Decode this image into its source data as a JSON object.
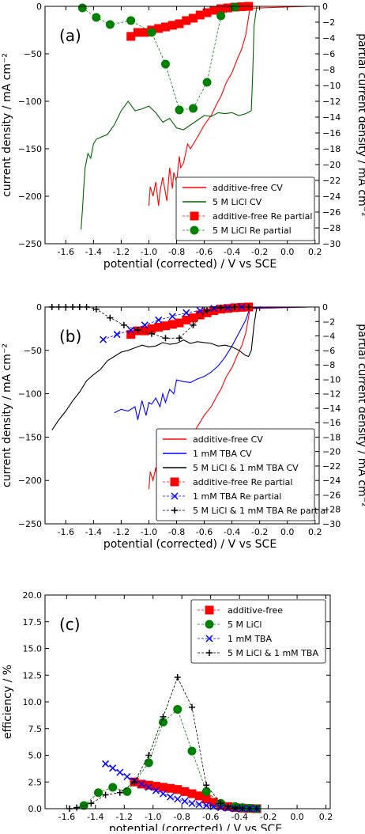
{
  "chart_data": [
    {
      "type": "line",
      "panel_label": "(a)",
      "xlabel": "potential (corrected) / V vs SCE",
      "ylabel": "current density / mA cm⁻²",
      "y2label": "partial current density / mA cm⁻²",
      "xlim": [
        -1.75,
        0.23
      ],
      "ylim": [
        -250,
        0
      ],
      "y2lim": [
        -30,
        0
      ],
      "xticks": [
        "-1.6",
        "-1.4",
        "-1.2",
        "-1.0",
        "-0.8",
        "-0.6",
        "-0.4",
        "-0.2",
        "0.0",
        "0.2"
      ],
      "yticks": [
        "0",
        "−50",
        "−100",
        "−150",
        "−200",
        "−250"
      ],
      "y2ticks": [
        "0",
        "−2",
        "−4",
        "−6",
        "−8",
        "−10",
        "−12",
        "−14",
        "−16",
        "−18",
        "−20",
        "−22",
        "−24",
        "−26",
        "−28",
        "−30"
      ],
      "legend_position": "lower-right",
      "series": [
        {
          "name": "additive-free CV",
          "axis": "left",
          "style": "line",
          "color": "#ff0000",
          "x": [
            0.15,
            -0.27,
            -0.3,
            -0.33,
            -0.36,
            -0.4,
            -0.44,
            -0.48,
            -0.5,
            -0.55,
            -0.6,
            -0.65,
            -0.7,
            -0.72,
            -0.75,
            -0.77,
            -0.78,
            -0.8,
            -0.82,
            -0.83,
            -0.85,
            -0.87,
            -0.9,
            -0.92,
            -0.93,
            -0.95,
            -0.97,
            -0.99,
            -1.0
          ],
          "y": [
            0,
            -2,
            -30,
            -45,
            -55,
            -70,
            -80,
            -95,
            -100,
            -115,
            -125,
            -138,
            -150,
            -145,
            -165,
            -170,
            -158,
            -185,
            -175,
            -192,
            -170,
            -205,
            -180,
            -195,
            -210,
            -185,
            -200,
            -190,
            -210
          ]
        },
        {
          "name": "5 M LiCl CV",
          "axis": "left",
          "style": "line",
          "color": "#006400",
          "x": [
            0.15,
            -0.22,
            -0.24,
            -0.25,
            -0.26,
            -0.3,
            -0.35,
            -0.4,
            -0.45,
            -0.5,
            -0.55,
            -0.6,
            -0.65,
            -0.7,
            -0.75,
            -0.8,
            -0.85,
            -0.9,
            -0.95,
            -1.0,
            -1.05,
            -1.1,
            -1.15,
            -1.2,
            -1.25,
            -1.3,
            -1.35,
            -1.38,
            -1.4,
            -1.42,
            -1.44,
            -1.46,
            -1.47,
            -1.48,
            -1.49
          ],
          "y": [
            0,
            0,
            -20,
            -70,
            -110,
            -113,
            -115,
            -112,
            -113,
            -112,
            -116,
            -115,
            -120,
            -125,
            -130,
            -128,
            -118,
            -122,
            -112,
            -105,
            -108,
            -110,
            -100,
            -110,
            -125,
            -135,
            -138,
            -140,
            -145,
            -160,
            -155,
            -170,
            -190,
            -215,
            -235
          ]
        },
        {
          "name": "additive-free Re partial",
          "axis": "right",
          "style": "marker",
          "marker": "square",
          "color": "#ff0000",
          "x": [
            -1.13,
            -1.08,
            -1.03,
            -0.98,
            -0.93,
            -0.88,
            -0.83,
            -0.78,
            -0.73,
            -0.68,
            -0.63,
            -0.58,
            -0.53,
            -0.48,
            -0.43,
            -0.38,
            -0.33,
            -0.28
          ],
          "y": [
            -3.8,
            -3.3,
            -3.3,
            -3.0,
            -2.8,
            -2.6,
            -2.4,
            -2.2,
            -1.8,
            -1.5,
            -1.1,
            -0.8,
            -0.5,
            -0.3,
            -0.2,
            -0.1,
            -0.05,
            0.0
          ]
        },
        {
          "name": "5 M LiCl Re partial",
          "axis": "right",
          "style": "marker",
          "marker": "circle",
          "color": "#008000",
          "x": [
            -1.48,
            -1.38,
            -1.28,
            -1.13,
            -0.98,
            -0.88,
            -0.78,
            -0.68,
            -0.58,
            -0.48,
            -0.38
          ],
          "y": [
            -0.2,
            -1.4,
            -2.3,
            -1.8,
            -3.3,
            -7.3,
            -13.1,
            -12.9,
            -9.6,
            -1.2,
            -0.1
          ]
        }
      ],
      "legend": [
        {
          "label": "additive-free CV",
          "color": "#ff0000",
          "kind": "line"
        },
        {
          "label": "5 M LiCl CV",
          "color": "#006400",
          "kind": "line"
        },
        {
          "label": "additive-free Re partial",
          "color": "#ff0000",
          "kind": "square"
        },
        {
          "label": "5 M LiCl Re partial",
          "color": "#008000",
          "kind": "circle"
        }
      ]
    },
    {
      "type": "line",
      "panel_label": "(b)",
      "xlabel": "potential (corrected) / V vs SCE",
      "ylabel": "current density / mA cm⁻²",
      "y2label": "partial current density / mA cm⁻²",
      "xlim": [
        -1.75,
        0.23
      ],
      "ylim": [
        -250,
        0
      ],
      "y2lim": [
        -30,
        0
      ],
      "xticks": [
        "-1.6",
        "-1.4",
        "-1.2",
        "-1.0",
        "-0.8",
        "-0.6",
        "-0.4",
        "-0.2",
        "0.0",
        "0.2"
      ],
      "yticks": [
        "0",
        "−50",
        "−100",
        "−150",
        "−200",
        "−250"
      ],
      "y2ticks": [
        "0",
        "−2",
        "−4",
        "−6",
        "−8",
        "−10",
        "−12",
        "−14",
        "−16",
        "−18",
        "−20",
        "−22",
        "−24",
        "−26",
        "−28",
        "−30"
      ],
      "legend_position": "lower-right",
      "series": [
        {
          "name": "additive-free CV",
          "axis": "left",
          "style": "line",
          "color": "#ff0000",
          "x": [
            0.15,
            -0.27,
            -0.3,
            -0.33,
            -0.36,
            -0.4,
            -0.44,
            -0.48,
            -0.5,
            -0.55,
            -0.6,
            -0.65,
            -0.7,
            -0.72,
            -0.75,
            -0.77,
            -0.78,
            -0.8,
            -0.82,
            -0.83,
            -0.85,
            -0.87,
            -0.9,
            -0.92,
            -0.93,
            -0.95,
            -0.97,
            -0.99,
            -1.0
          ],
          "y": [
            0,
            -2,
            -30,
            -45,
            -55,
            -70,
            -80,
            -95,
            -100,
            -115,
            -125,
            -138,
            -150,
            -145,
            -165,
            -170,
            -158,
            -185,
            -175,
            -192,
            -170,
            -205,
            -180,
            -195,
            -210,
            -185,
            -200,
            -190,
            -210
          ]
        },
        {
          "name": "1 mM TBA CV",
          "axis": "left",
          "style": "line",
          "color": "#0000ff",
          "x": [
            0.15,
            -0.27,
            -0.3,
            -0.35,
            -0.4,
            -0.45,
            -0.5,
            -0.55,
            -0.6,
            -0.65,
            -0.7,
            -0.75,
            -0.8,
            -0.82,
            -0.85,
            -0.88,
            -0.9,
            -0.92,
            -0.95,
            -0.98,
            -1.0,
            -1.02,
            -1.05,
            -1.08,
            -1.1,
            -1.15,
            -1.2,
            -1.25
          ],
          "y": [
            0,
            -1,
            -15,
            -30,
            -45,
            -58,
            -68,
            -75,
            -80,
            -83,
            -87,
            -86,
            -84,
            -100,
            -95,
            -110,
            -100,
            -115,
            -105,
            -112,
            -110,
            -125,
            -108,
            -130,
            -115,
            -120,
            -118,
            -122
          ]
        },
        {
          "name": "5 M LiCl & 1 mM TBA CV",
          "axis": "left",
          "style": "line",
          "color": "#000000",
          "x": [
            0.15,
            -0.22,
            -0.24,
            -0.26,
            -0.28,
            -0.3,
            -0.35,
            -0.4,
            -0.45,
            -0.5,
            -0.55,
            -0.6,
            -0.65,
            -0.7,
            -0.75,
            -0.8,
            -0.85,
            -0.9,
            -0.95,
            -1.0,
            -1.05,
            -1.1,
            -1.15,
            -1.2,
            -1.25,
            -1.3,
            -1.35,
            -1.4,
            -1.45,
            -1.5,
            -1.55,
            -1.6,
            -1.65,
            -1.7
          ],
          "y": [
            0,
            0,
            -20,
            -50,
            -57,
            -56,
            -50,
            -46,
            -44,
            -45,
            -42,
            -41,
            -40,
            -42,
            -38,
            -42,
            -43,
            -41,
            -45,
            -46,
            -44,
            -47,
            -50,
            -52,
            -57,
            -62,
            -72,
            -78,
            -85,
            -98,
            -108,
            -120,
            -130,
            -142
          ]
        },
        {
          "name": "additive-free Re partial",
          "axis": "right",
          "style": "marker",
          "marker": "square",
          "color": "#ff0000",
          "x": [
            -1.13,
            -1.08,
            -1.03,
            -0.98,
            -0.93,
            -0.88,
            -0.83,
            -0.78,
            -0.73,
            -0.68,
            -0.63,
            -0.58,
            -0.53,
            -0.48,
            -0.43,
            -0.38,
            -0.33,
            -0.28
          ],
          "y": [
            -3.8,
            -3.3,
            -3.3,
            -3.0,
            -2.8,
            -2.6,
            -2.4,
            -2.2,
            -1.8,
            -1.5,
            -1.1,
            -0.8,
            -0.5,
            -0.3,
            -0.2,
            -0.1,
            -0.05,
            0.0
          ]
        },
        {
          "name": "1 mM TBA Re partial",
          "axis": "right",
          "style": "marker",
          "marker": "x",
          "color": "#0000ff",
          "x": [
            -1.33,
            -1.23,
            -1.13,
            -1.03,
            -0.93,
            -0.83,
            -0.73,
            -0.63,
            -0.53,
            -0.43,
            -0.33
          ],
          "y": [
            -4.5,
            -3.8,
            -3.2,
            -2.5,
            -1.8,
            -1.3,
            -0.8,
            -0.5,
            -0.2,
            -0.1,
            0.0
          ]
        },
        {
          "name": "5 M LiCl & 1 mM TBA Re partial",
          "axis": "right",
          "style": "marker",
          "marker": "plus",
          "color": "#000000",
          "x": [
            -1.7,
            -1.65,
            -1.6,
            -1.55,
            -1.5,
            -1.45,
            -1.38,
            -1.28,
            -1.18,
            -1.08,
            -0.98,
            -0.88,
            -0.78,
            -0.68,
            -0.58,
            -0.48,
            -0.38,
            -0.28
          ],
          "y": [
            0,
            0,
            0,
            0,
            0,
            0,
            -0.3,
            -1.5,
            -2.5,
            -3.2,
            -3.7,
            -4.3,
            -4.3,
            -2.5,
            -0.5,
            -0.1,
            0,
            0
          ]
        }
      ],
      "legend": [
        {
          "label": "additive-free CV",
          "color": "#ff0000",
          "kind": "line"
        },
        {
          "label": "1 mM TBA CV",
          "color": "#0000ff",
          "kind": "line"
        },
        {
          "label": "5 M LiCl & 1 mM TBA CV",
          "color": "#000000",
          "kind": "line"
        },
        {
          "label": "additive-free Re partial",
          "color": "#ff0000",
          "kind": "square"
        },
        {
          "label": "1 mM TBA Re partial",
          "color": "#0000ff",
          "kind": "x"
        },
        {
          "label": "5 M LiCl & 1 mM TBA Re partial",
          "color": "#000000",
          "kind": "plus"
        }
      ]
    },
    {
      "type": "line",
      "panel_label": "(c)",
      "xlabel": "potential (corrected) / V vs SCE",
      "ylabel": "efficiency / %",
      "xlim": [
        -1.75,
        0.23
      ],
      "ylim": [
        0,
        20
      ],
      "xticks": [
        "-1.6",
        "-1.4",
        "-1.2",
        "-1.0",
        "-0.8",
        "-0.6",
        "-0.4",
        "-0.2",
        "0.0",
        "0.2"
      ],
      "yticks": [
        "0.0",
        "2.5",
        "5.0",
        "7.5",
        "10.0",
        "12.5",
        "15.0",
        "17.5",
        "20.0"
      ],
      "legend_position": "top-right",
      "series": [
        {
          "name": "additive-free",
          "style": "marker",
          "marker": "square",
          "color": "#ff0000",
          "x": [
            -1.13,
            -1.08,
            -1.03,
            -0.98,
            -0.93,
            -0.88,
            -0.83,
            -0.78,
            -0.73,
            -0.68,
            -0.63,
            -0.58,
            -0.53,
            -0.48,
            -0.43,
            -0.38,
            -0.33,
            -0.28
          ],
          "y": [
            2.5,
            2.3,
            2.2,
            2.1,
            2.0,
            1.9,
            1.8,
            1.6,
            1.4,
            1.2,
            0.9,
            0.6,
            0.3,
            0.2,
            0.1,
            0.05,
            0.02,
            0.0
          ]
        },
        {
          "name": "5 M LiCl",
          "style": "marker",
          "marker": "circle",
          "color": "#008000",
          "x": [
            -1.48,
            -1.38,
            -1.28,
            -1.18,
            -1.03,
            -0.93,
            -0.83,
            -0.73,
            -0.63,
            -0.53,
            -0.43,
            -0.38,
            -0.33,
            -0.28
          ],
          "y": [
            0.3,
            1.5,
            2.0,
            1.6,
            4.3,
            8.1,
            9.3,
            5.4,
            1.6,
            0.5,
            0.2,
            0.1,
            0.05,
            0.0
          ]
        },
        {
          "name": "1 mM TBA",
          "style": "marker",
          "marker": "x",
          "color": "#0000ff",
          "x": [
            -1.33,
            -1.28,
            -1.23,
            -1.18,
            -1.13,
            -1.08,
            -1.03,
            -0.98,
            -0.93,
            -0.88,
            -0.83,
            -0.78,
            -0.73,
            -0.68,
            -0.63,
            -0.58,
            -0.53,
            -0.48,
            -0.43,
            -0.38,
            -0.33,
            -0.28
          ],
          "y": [
            4.2,
            3.8,
            3.4,
            3.0,
            2.6,
            2.3,
            2.0,
            1.7,
            1.4,
            1.1,
            0.9,
            0.7,
            0.5,
            0.4,
            0.3,
            0.2,
            0.1,
            0.05,
            0.0,
            0.0,
            0.0,
            0.0
          ]
        },
        {
          "name": "5 M LiCl & 1 mM TBA",
          "style": "marker",
          "marker": "plus",
          "color": "#000000",
          "x": [
            -1.58,
            -1.53,
            -1.43,
            -1.33,
            -1.23,
            -1.13,
            -1.03,
            -0.93,
            -0.83,
            -0.73,
            -0.63,
            -0.53,
            -0.48,
            -0.43,
            -0.38,
            -0.33,
            -0.28
          ],
          "y": [
            0,
            0.1,
            0.5,
            1.3,
            1.5,
            2.5,
            5.0,
            8.6,
            12.3,
            9.5,
            2.2,
            0.5,
            0.2,
            0.1,
            0.05,
            0.0,
            0.0
          ]
        }
      ],
      "legend": [
        {
          "label": "additive-free",
          "color": "#ff0000",
          "kind": "square"
        },
        {
          "label": "5 M LiCl",
          "color": "#008000",
          "kind": "circle"
        },
        {
          "label": "1 mM TBA",
          "color": "#0000ff",
          "kind": "x"
        },
        {
          "label": "5 M LiCl & 1 mM TBA",
          "color": "#000000",
          "kind": "plus"
        }
      ]
    }
  ]
}
